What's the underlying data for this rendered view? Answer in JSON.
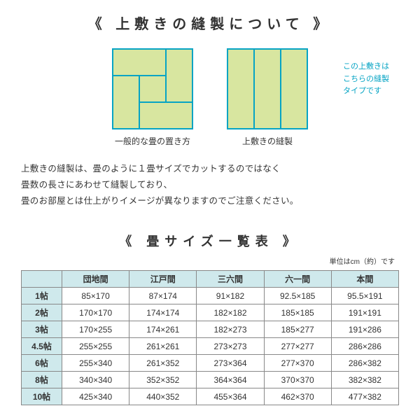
{
  "heading1": "《 上敷きの縫製について 》",
  "diagrams": {
    "left_caption": "一般的な畳の置き方",
    "right_caption": "上敷きの縫製",
    "side_note_line1": "この上敷きは",
    "side_note_line2": "こちらの縫製",
    "side_note_line3": "タイプです",
    "fill_color": "#d8e6a0",
    "border_color": "#06a4c4",
    "side_note_color": "#06a4c4"
  },
  "description": {
    "line1": "上敷きの縫製は、畳のように１畳サイズでカットするのではなく",
    "line2": "畳数の長さにあわせて縫製しており、",
    "line3": "畳のお部屋とは仕上がりイメージが異なりますのでご注意ください。"
  },
  "heading2": "《 畳サイズ一覧表 》",
  "table_unit": "単位はcm（約）です",
  "table": {
    "header_bg": "#cfe9ec",
    "border_color": "#888888",
    "columns": [
      "団地間",
      "江戸間",
      "三六間",
      "六一間",
      "本間"
    ],
    "rows": [
      {
        "label": "1帖",
        "cells": [
          "85×170",
          "87×174",
          "91×182",
          "92.5×185",
          "95.5×191"
        ]
      },
      {
        "label": "2帖",
        "cells": [
          "170×170",
          "174×174",
          "182×182",
          "185×185",
          "191×191"
        ]
      },
      {
        "label": "3帖",
        "cells": [
          "170×255",
          "174×261",
          "182×273",
          "185×277",
          "191×286"
        ]
      },
      {
        "label": "4.5帖",
        "cells": [
          "255×255",
          "261×261",
          "273×273",
          "277×277",
          "286×286"
        ]
      },
      {
        "label": "6帖",
        "cells": [
          "255×340",
          "261×352",
          "273×364",
          "277×370",
          "286×382"
        ]
      },
      {
        "label": "8帖",
        "cells": [
          "340×340",
          "352×352",
          "364×364",
          "370×370",
          "382×382"
        ]
      },
      {
        "label": "10帖",
        "cells": [
          "425×340",
          "440×352",
          "455×364",
          "462×370",
          "477×382"
        ]
      }
    ]
  }
}
